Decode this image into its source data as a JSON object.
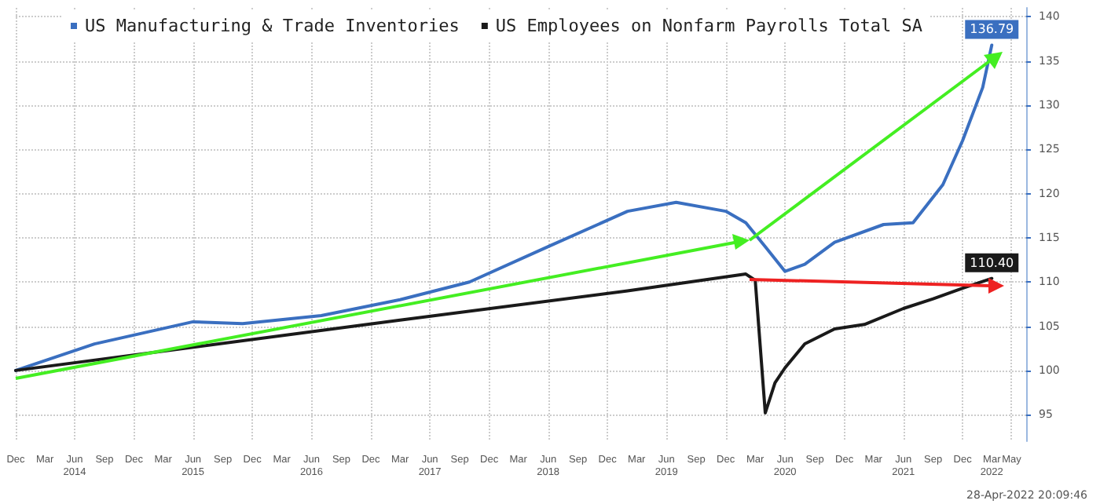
{
  "chart_data": {
    "type": "line",
    "series": [
      {
        "name": "US Manufacturing & Trade Inventories",
        "color": "#3a6fc0",
        "x": [
          "2013-12",
          "2014-08",
          "2015-06",
          "2015-11",
          "2016-07",
          "2017-03",
          "2017-10",
          "2018-06",
          "2019-02",
          "2019-07",
          "2019-12",
          "2020-02",
          "2020-04",
          "2020-06",
          "2020-08",
          "2020-11",
          "2021-04",
          "2021-07",
          "2021-10",
          "2021-12",
          "2022-02",
          "2022-03"
        ],
        "values": [
          100,
          103,
          105.5,
          105.3,
          106.2,
          108,
          110,
          114,
          118,
          119,
          118,
          116.7,
          114,
          111.2,
          112,
          114.5,
          116.5,
          116.7,
          121,
          126,
          132,
          136.79
        ],
        "value_labels": [
          null,
          null,
          null,
          null,
          null,
          null,
          null,
          null,
          null,
          null,
          null,
          null,
          null,
          null,
          null,
          null,
          null,
          null,
          null,
          null,
          null,
          "136.79"
        ]
      },
      {
        "name": "US Employees on Nonfarm Payrolls Total SA",
        "color": "#1a1a1a",
        "x": [
          "2013-12",
          "2017-03",
          "2019-02",
          "2020-02",
          "2020-03",
          "2020-04",
          "2020-05",
          "2020-06",
          "2020-08",
          "2020-11",
          "2021-02",
          "2021-06",
          "2021-09",
          "2021-12",
          "2022-03"
        ],
        "values": [
          100,
          105.7,
          109,
          110.9,
          110.2,
          95.2,
          98.6,
          100.3,
          103,
          104.7,
          105.2,
          107,
          108.1,
          109.3,
          110.4
        ],
        "value_labels": [
          null,
          null,
          null,
          null,
          null,
          null,
          null,
          null,
          null,
          null,
          null,
          null,
          null,
          null,
          "110.40"
        ]
      }
    ],
    "xlim": [
      "2013-12",
      "2022-06-15"
    ],
    "xticks": [
      {
        "value": "2013-12",
        "label": "Dec"
      },
      {
        "value": "2014-03",
        "label": "Mar"
      },
      {
        "value": "2014-06",
        "label": "Jun\n2014"
      },
      {
        "value": "2014-09",
        "label": "Sep"
      },
      {
        "value": "2014-12",
        "label": "Dec"
      },
      {
        "value": "2015-03",
        "label": "Mar"
      },
      {
        "value": "2015-06",
        "label": "Jun\n2015"
      },
      {
        "value": "2015-09",
        "label": "Sep"
      },
      {
        "value": "2015-12",
        "label": "Dec"
      },
      {
        "value": "2016-03",
        "label": "Mar"
      },
      {
        "value": "2016-06",
        "label": "Jun\n2016"
      },
      {
        "value": "2016-09",
        "label": "Sep"
      },
      {
        "value": "2016-12",
        "label": "Dec"
      },
      {
        "value": "2017-03",
        "label": "Mar"
      },
      {
        "value": "2017-06",
        "label": "Jun\n2017"
      },
      {
        "value": "2017-09",
        "label": "Sep"
      },
      {
        "value": "2017-12",
        "label": "Dec"
      },
      {
        "value": "2018-03",
        "label": "Mar"
      },
      {
        "value": "2018-06",
        "label": "Jun\n2018"
      },
      {
        "value": "2018-09",
        "label": "Sep"
      },
      {
        "value": "2018-12",
        "label": "Dec"
      },
      {
        "value": "2019-03",
        "label": "Mar"
      },
      {
        "value": "2019-06",
        "label": "Jun\n2019"
      },
      {
        "value": "2019-09",
        "label": "Sep"
      },
      {
        "value": "2019-12",
        "label": "Dec"
      },
      {
        "value": "2020-03",
        "label": "Mar"
      },
      {
        "value": "2020-06",
        "label": "Jun\n2020"
      },
      {
        "value": "2020-09",
        "label": "Sep"
      },
      {
        "value": "2020-12",
        "label": "Dec"
      },
      {
        "value": "2021-03",
        "label": "Mar"
      },
      {
        "value": "2021-06",
        "label": "Jun\n2021"
      },
      {
        "value": "2021-09",
        "label": "Sep"
      },
      {
        "value": "2021-12",
        "label": "Dec"
      },
      {
        "value": "2022-03",
        "label": "Mar\n2022"
      },
      {
        "value": "2022-05",
        "label": "May"
      }
    ],
    "ylim": [
      92,
      141
    ],
    "yticks": [
      95,
      100,
      105,
      110,
      115,
      120,
      125,
      130,
      135,
      140
    ],
    "grid": true,
    "legend": "top",
    "marker": "none",
    "annotations": [
      "28-Apr-2022 20:09:46"
    ]
  }
}
